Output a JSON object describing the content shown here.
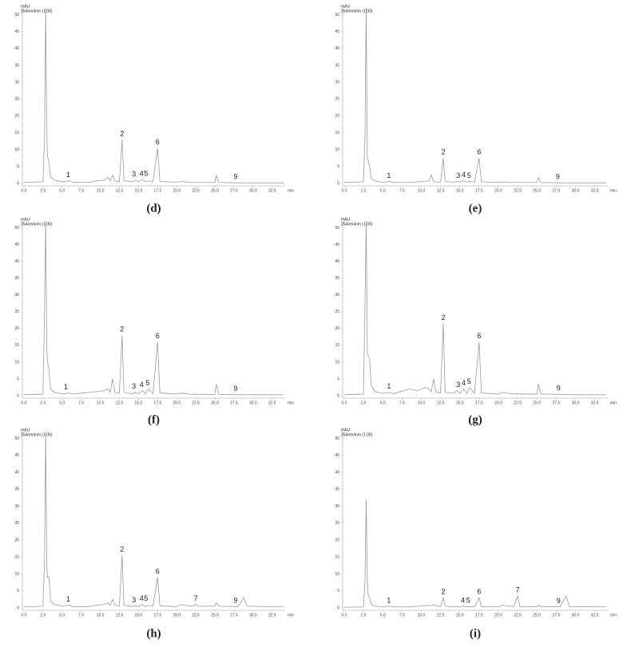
{
  "chart_data": [
    {
      "type": "line",
      "label": "(d)",
      "y_label": "mAU",
      "subtitle": "254nm4nm (1.00)",
      "x_label": "min",
      "color": "#9a9a9a",
      "x": [
        0,
        2.5,
        2.7,
        2.85,
        3.0,
        3.1,
        3.3,
        3.5,
        4.0,
        5.0,
        6.0,
        6.3,
        8.5,
        9.5,
        10.5,
        11.0,
        11.3,
        11.6,
        11.9,
        12.5,
        12.85,
        13.1,
        14.2,
        14.6,
        15.0,
        15.5,
        15.9,
        16.3,
        16.9,
        17.5,
        17.8,
        20.0,
        20.5,
        22.0,
        22.5,
        22.8,
        25.0,
        25.2,
        25.5,
        28.0,
        28.8,
        29.2,
        34.0
      ],
      "values": [
        0.3,
        0.5,
        14,
        52,
        14,
        8,
        6,
        2,
        1,
        0.5,
        0.8,
        0.4,
        0.3,
        0.8,
        1,
        1.8,
        0.8,
        2.5,
        0.8,
        0.5,
        13,
        0.8,
        0.5,
        1,
        0.5,
        1.2,
        0.5,
        0.8,
        0.5,
        10.5,
        0.6,
        0.4,
        0.6,
        0.3,
        0.3,
        0.3,
        0.3,
        2.5,
        0.3,
        0.2,
        0.2,
        0.2,
        0.2
      ],
      "annotations": [
        {
          "text": "1",
          "x": 5.8
        },
        {
          "text": "2",
          "x": 12.85
        },
        {
          "text": "3",
          "x": 14.4
        },
        {
          "text": "4",
          "x": 15.4
        },
        {
          "text": "5",
          "x": 16.0
        },
        {
          "text": "6",
          "x": 17.5
        },
        {
          "text": "9",
          "x": 27.7
        }
      ],
      "xlim": [
        -0.2,
        34.2
      ],
      "ylim": [
        -0.7,
        52
      ],
      "xticks": [
        {
          "value": 0,
          "label": "0.0"
        },
        2.5,
        {
          "value": 5,
          "label": "5.0"
        },
        7.5,
        {
          "value": 10,
          "label": "10.0"
        },
        12.5,
        {
          "value": 15,
          "label": "15.0"
        },
        17.5,
        {
          "value": 20,
          "label": "20.0"
        },
        22.5,
        {
          "value": 25,
          "label": "25.0"
        },
        27.5,
        {
          "value": 30,
          "label": "30.0"
        },
        32.5
      ],
      "yticks": [
        0,
        5,
        10,
        15,
        20,
        25,
        30,
        35,
        40,
        45,
        50
      ]
    },
    {
      "type": "line",
      "label": "(e)",
      "y_label": "mAU",
      "subtitle": "254nm4nm (1.00)",
      "x_label": "min",
      "color": "#9a9a9a",
      "x": [
        0,
        2.5,
        2.7,
        2.85,
        3.0,
        3.1,
        3.3,
        3.5,
        4.0,
        5.0,
        6.0,
        6.3,
        8.5,
        9.5,
        10.5,
        11.0,
        11.3,
        11.6,
        11.9,
        12.5,
        12.85,
        13.1,
        14.2,
        14.6,
        15.0,
        15.5,
        15.9,
        16.3,
        16.9,
        17.5,
        17.8,
        20.0,
        20.5,
        22.0,
        22.5,
        22.8,
        25.0,
        25.2,
        25.5,
        28.0,
        28.8,
        29.2,
        34.0
      ],
      "values": [
        0.3,
        0.5,
        14,
        52,
        8,
        7,
        5,
        1.5,
        0.8,
        0.4,
        0.6,
        0.3,
        0.3,
        0.5,
        0.6,
        0.8,
        2.5,
        0.6,
        0.5,
        0.4,
        7.5,
        0.6,
        0.4,
        0.6,
        0.4,
        0.8,
        0.4,
        0.6,
        0.4,
        7.5,
        0.5,
        0.3,
        0.5,
        0.3,
        0.3,
        0.3,
        0.3,
        1.8,
        0.3,
        0.2,
        0.2,
        0.2,
        0.2
      ],
      "annotations": [
        {
          "text": "1",
          "x": 5.8
        },
        {
          "text": "2",
          "x": 12.85
        },
        {
          "text": "3",
          "x": 14.8
        },
        {
          "text": "4",
          "x": 15.5
        },
        {
          "text": "5",
          "x": 16.2
        },
        {
          "text": "6",
          "x": 17.5
        },
        {
          "text": "9",
          "x": 27.7
        }
      ],
      "xlim": [
        -0.2,
        34.2
      ],
      "ylim": [
        -0.7,
        52
      ],
      "xticks": [
        {
          "value": 0,
          "label": "0.0"
        },
        2.5,
        {
          "value": 5,
          "label": "5.0"
        },
        7.5,
        {
          "value": 10,
          "label": "10.0"
        },
        12.5,
        {
          "value": 15,
          "label": "15.0"
        },
        17.5,
        {
          "value": 20,
          "label": "20.0"
        },
        22.5,
        {
          "value": 25,
          "label": "25.0"
        },
        27.5,
        {
          "value": 30,
          "label": "30.0"
        },
        32.5
      ],
      "yticks": [
        0,
        5,
        10,
        15,
        20,
        25,
        30,
        35,
        40,
        45,
        50
      ]
    },
    {
      "type": "line",
      "label": "(f)",
      "y_label": "mAU",
      "subtitle": "254nm4nm (1.00)",
      "x_label": "min",
      "color": "#9a9a9a",
      "x": [
        0,
        2.5,
        2.7,
        2.85,
        3.0,
        3.1,
        3.3,
        3.5,
        4.0,
        5.0,
        6.0,
        6.3,
        8.5,
        9.5,
        10.5,
        11.0,
        11.3,
        11.6,
        11.9,
        12.5,
        12.85,
        13.1,
        14.2,
        14.6,
        15.0,
        15.5,
        15.9,
        16.3,
        16.9,
        17.5,
        17.8,
        20.0,
        20.5,
        22.0,
        22.5,
        22.8,
        25.0,
        25.2,
        25.5,
        28.0,
        28.8,
        29.2,
        34.0
      ],
      "values": [
        0.3,
        0.5,
        25,
        52,
        14,
        10,
        7,
        2,
        1,
        0.6,
        0.8,
        0.5,
        1,
        1.2,
        1.5,
        2,
        1,
        5,
        1,
        0.7,
        18,
        1,
        0.6,
        1,
        0.6,
        1.5,
        0.6,
        2,
        0.6,
        16,
        0.8,
        0.5,
        0.8,
        0.4,
        0.5,
        0.4,
        0.4,
        3.5,
        0.4,
        0.3,
        0.3,
        0.3,
        0.3
      ],
      "annotations": [
        {
          "text": "1",
          "x": 5.5
        },
        {
          "text": "2",
          "x": 12.85
        },
        {
          "text": "3",
          "x": 14.4
        },
        {
          "text": "4",
          "x": 15.4
        },
        {
          "text": "5",
          "x": 16.2
        },
        {
          "text": "6",
          "x": 17.5
        },
        {
          "text": "9",
          "x": 27.7
        }
      ],
      "xlim": [
        -0.2,
        34.2
      ],
      "ylim": [
        -0.7,
        52
      ],
      "xticks": [
        {
          "value": 0,
          "label": "0.0"
        },
        2.5,
        {
          "value": 5,
          "label": "5.0"
        },
        7.5,
        {
          "value": 10,
          "label": "10.0"
        },
        12.5,
        {
          "value": 15,
          "label": "15.0"
        },
        17.5,
        {
          "value": 20,
          "label": "20.0"
        },
        22.5,
        {
          "value": 25,
          "label": "25.0"
        },
        27.5,
        {
          "value": 30,
          "label": "30.0"
        },
        32.5
      ],
      "yticks": [
        0,
        5,
        10,
        15,
        20,
        25,
        30,
        35,
        40,
        45,
        50
      ]
    },
    {
      "type": "line",
      "label": "(g)",
      "y_label": "mAU",
      "subtitle": "254nm4nm (1.00)",
      "x_label": "min",
      "color": "#9a9a9a",
      "x": [
        0,
        2.5,
        2.7,
        2.85,
        3.0,
        3.1,
        3.3,
        3.5,
        4.0,
        5.0,
        6.0,
        6.3,
        8.5,
        9.5,
        10.5,
        11.0,
        11.3,
        11.6,
        11.9,
        12.5,
        12.85,
        13.1,
        14.2,
        14.6,
        15.0,
        15.5,
        15.9,
        16.3,
        16.9,
        17.5,
        17.8,
        20.0,
        20.5,
        22.0,
        22.5,
        22.8,
        25.0,
        25.2,
        25.5,
        28.0,
        28.8,
        29.2,
        34.0
      ],
      "values": [
        0.3,
        0.5,
        27,
        52,
        13,
        12,
        11,
        3,
        1.2,
        0.7,
        1,
        0.6,
        2,
        1.5,
        2.5,
        2,
        1.2,
        5,
        1.2,
        0.8,
        21.5,
        1,
        0.7,
        1.5,
        0.7,
        2,
        0.7,
        2.5,
        0.7,
        16,
        0.8,
        0.5,
        1,
        0.5,
        0.6,
        0.5,
        0.5,
        3.5,
        0.5,
        0.4,
        0.4,
        0.3,
        0.3
      ],
      "annotations": [
        {
          "text": "1",
          "x": 5.8
        },
        {
          "text": "2",
          "x": 12.85
        },
        {
          "text": "3",
          "x": 14.8
        },
        {
          "text": "4",
          "x": 15.5
        },
        {
          "text": "5",
          "x": 16.2
        },
        {
          "text": "6",
          "x": 17.5
        },
        {
          "text": "9",
          "x": 27.8
        }
      ],
      "xlim": [
        -0.2,
        34.2
      ],
      "ylim": [
        -0.7,
        52
      ],
      "xticks": [
        {
          "value": 0,
          "label": "0.0"
        },
        2.5,
        {
          "value": 5,
          "label": "5.0"
        },
        7.5,
        {
          "value": 10,
          "label": "10.0"
        },
        12.5,
        {
          "value": 15,
          "label": "15.0"
        },
        17.5,
        {
          "value": 20,
          "label": "20.0"
        },
        22.5,
        {
          "value": 25,
          "label": "25.0"
        },
        27.5,
        {
          "value": 30,
          "label": "30.0"
        },
        32.5
      ],
      "yticks": [
        0,
        5,
        10,
        15,
        20,
        25,
        30,
        35,
        40,
        45,
        50
      ]
    },
    {
      "type": "line",
      "label": "(h)",
      "y_label": "mAU",
      "subtitle": "254nm4nm (1.00)",
      "x_label": "min",
      "color": "#9a9a9a",
      "x": [
        0,
        2.5,
        2.7,
        2.85,
        3.0,
        3.1,
        3.3,
        3.5,
        4.0,
        5.0,
        6.0,
        6.3,
        8.5,
        9.5,
        10.5,
        11.0,
        11.3,
        11.6,
        11.9,
        12.5,
        12.85,
        13.1,
        14.2,
        14.6,
        15.0,
        15.5,
        15.9,
        16.3,
        16.9,
        17.5,
        17.8,
        20.0,
        20.5,
        22.0,
        22.5,
        22.8,
        25.0,
        25.2,
        25.5,
        28.0,
        28.8,
        29.2,
        34.0
      ],
      "values": [
        0.3,
        0.5,
        14,
        52,
        12,
        9,
        9,
        2,
        1,
        0.5,
        0.8,
        0.4,
        0.4,
        0.8,
        1,
        1.5,
        0.8,
        2.5,
        0.8,
        0.5,
        15.5,
        0.8,
        0.4,
        0.6,
        0.4,
        1,
        0.4,
        0.8,
        0.5,
        9,
        0.6,
        0.4,
        1,
        0.5,
        1,
        0.5,
        0.5,
        1.5,
        0.5,
        0.4,
        3,
        0.5,
        0.3
      ],
      "annotations": [
        {
          "text": "1",
          "x": 5.8
        },
        {
          "text": "2",
          "x": 12.85
        },
        {
          "text": "3",
          "x": 14.4
        },
        {
          "text": "4",
          "x": 15.4
        },
        {
          "text": "5",
          "x": 16.0
        },
        {
          "text": "6",
          "x": 17.5
        },
        {
          "text": "7",
          "x": 22.5
        },
        {
          "text": "9",
          "x": 27.7
        }
      ],
      "xlim": [
        -0.2,
        34.2
      ],
      "ylim": [
        -0.7,
        52
      ],
      "xticks": [
        {
          "value": 0,
          "label": "0.0"
        },
        2.5,
        {
          "value": 5,
          "label": "5.0"
        },
        7.5,
        {
          "value": 10,
          "label": "10.0"
        },
        12.5,
        {
          "value": 15,
          "label": "15.0"
        },
        17.5,
        {
          "value": 20,
          "label": "20.0"
        },
        22.5,
        {
          "value": 25,
          "label": "25.0"
        },
        27.5,
        {
          "value": 30,
          "label": "30.0"
        },
        32.5
      ],
      "yticks": [
        0,
        5,
        10,
        15,
        20,
        25,
        30,
        35,
        40,
        45,
        50
      ]
    },
    {
      "type": "line",
      "label": "(i)",
      "y_label": "mAU",
      "subtitle": "254nm4nm (1.00)",
      "x_label": "min",
      "color": "#9a9a9a",
      "x": [
        0,
        2.5,
        2.7,
        2.85,
        3.0,
        3.1,
        3.3,
        3.5,
        4.0,
        5.0,
        6.0,
        6.3,
        8.5,
        9.5,
        10.5,
        11.0,
        11.3,
        11.6,
        11.9,
        12.5,
        12.85,
        13.1,
        14.2,
        14.6,
        15.0,
        15.5,
        15.9,
        16.3,
        16.9,
        17.5,
        17.8,
        20.0,
        20.5,
        22.0,
        22.5,
        22.8,
        25.0,
        25.2,
        25.5,
        28.0,
        28.8,
        29.2,
        34.0
      ],
      "values": [
        0.2,
        0.3,
        8,
        32,
        8,
        4,
        3,
        1,
        0.5,
        0.3,
        0.5,
        0.3,
        0.3,
        0.5,
        0.6,
        0.8,
        0.6,
        1,
        0.6,
        0.4,
        3,
        0.5,
        0.3,
        0.4,
        0.3,
        0.5,
        0.3,
        0.4,
        0.3,
        3,
        0.4,
        0.3,
        0.8,
        0.4,
        3.5,
        0.4,
        0.4,
        0.8,
        0.4,
        0.3,
        3.5,
        0.4,
        0.3
      ],
      "annotations": [
        {
          "text": "1",
          "x": 5.8
        },
        {
          "text": "2",
          "x": 12.85
        },
        {
          "text": "4",
          "x": 15.4
        },
        {
          "text": "5",
          "x": 16.1
        },
        {
          "text": "6",
          "x": 17.5
        },
        {
          "text": "7",
          "x": 22.5
        },
        {
          "text": "9",
          "x": 27.8
        }
      ],
      "xlim": [
        -0.2,
        34.2
      ],
      "ylim": [
        -0.7,
        52
      ],
      "xticks": [
        {
          "value": 0,
          "label": "0.0"
        },
        2.5,
        {
          "value": 5,
          "label": "5.0"
        },
        7.5,
        {
          "value": 10,
          "label": "10.0"
        },
        12.5,
        {
          "value": 15,
          "label": "15.0"
        },
        17.5,
        {
          "value": 20,
          "label": "20.0"
        },
        22.5,
        {
          "value": 25,
          "label": "25.0"
        },
        27.5,
        {
          "value": 30,
          "label": "30.0"
        },
        32.5
      ],
      "yticks": [
        0,
        5,
        10,
        15,
        20,
        25,
        30,
        35,
        40,
        45,
        50
      ]
    }
  ]
}
